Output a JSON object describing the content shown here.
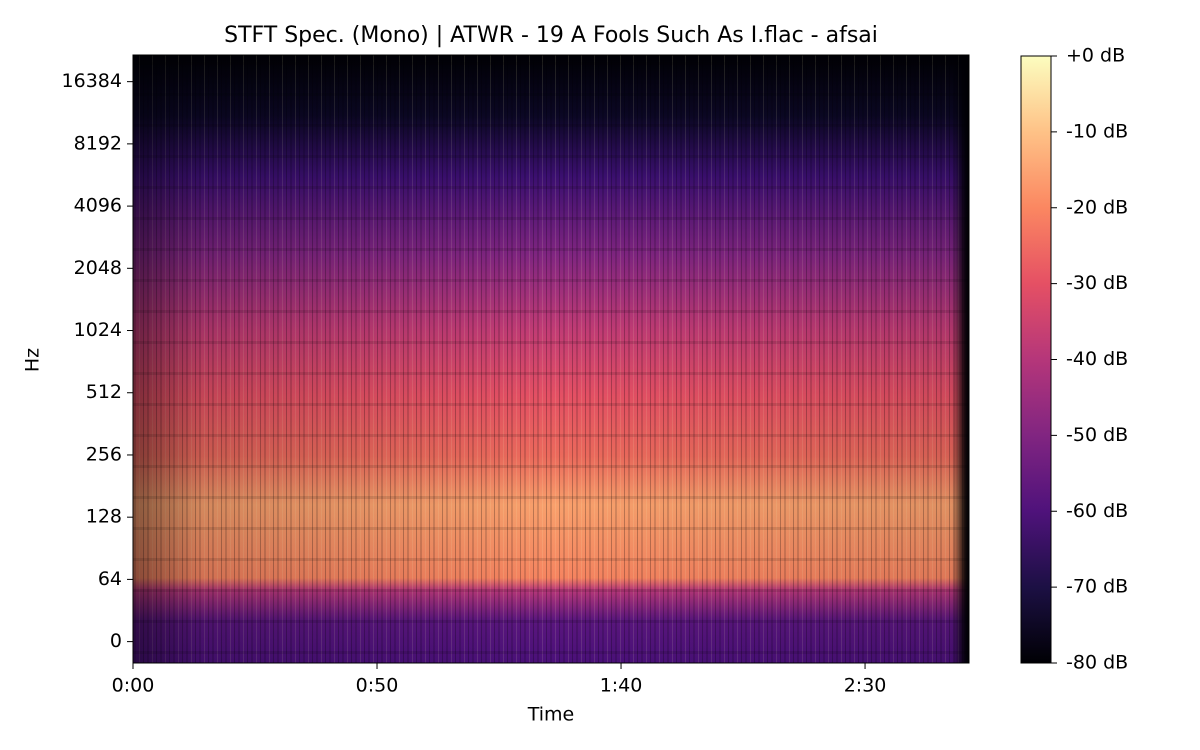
{
  "chart_data": {
    "type": "spectrogram",
    "title": "STFT Spec. (Mono) | ATWR - 19 A Fools Such As I.flac - afsai",
    "xlabel": "Time",
    "ylabel": "Hz",
    "xlim": [
      0,
      171.3
    ],
    "xticks": [
      {
        "value": 0,
        "label": "0:00"
      },
      {
        "value": 50,
        "label": "0:50"
      },
      {
        "value": 100,
        "label": "1:40"
      },
      {
        "value": 150,
        "label": "2:30"
      }
    ],
    "yscale": "symlog",
    "linthresh": 64,
    "base": 2,
    "ylim": [
      -22,
      22050
    ],
    "yticks": [
      0,
      64,
      128,
      256,
      512,
      1024,
      2048,
      4096,
      8192,
      16384
    ],
    "colormap": "magma",
    "clim": [
      -80,
      0
    ],
    "cticks": [
      {
        "value": 0,
        "label": "+0 dB"
      },
      {
        "value": -10,
        "label": "-10 dB"
      },
      {
        "value": -20,
        "label": "-20 dB"
      },
      {
        "value": -30,
        "label": "-30 dB"
      },
      {
        "value": -40,
        "label": "-40 dB"
      },
      {
        "value": -50,
        "label": "-50 dB"
      },
      {
        "value": -60,
        "label": "-60 dB"
      },
      {
        "value": -70,
        "label": "-70 dB"
      },
      {
        "value": -80,
        "label": "-80 dB"
      }
    ]
  }
}
